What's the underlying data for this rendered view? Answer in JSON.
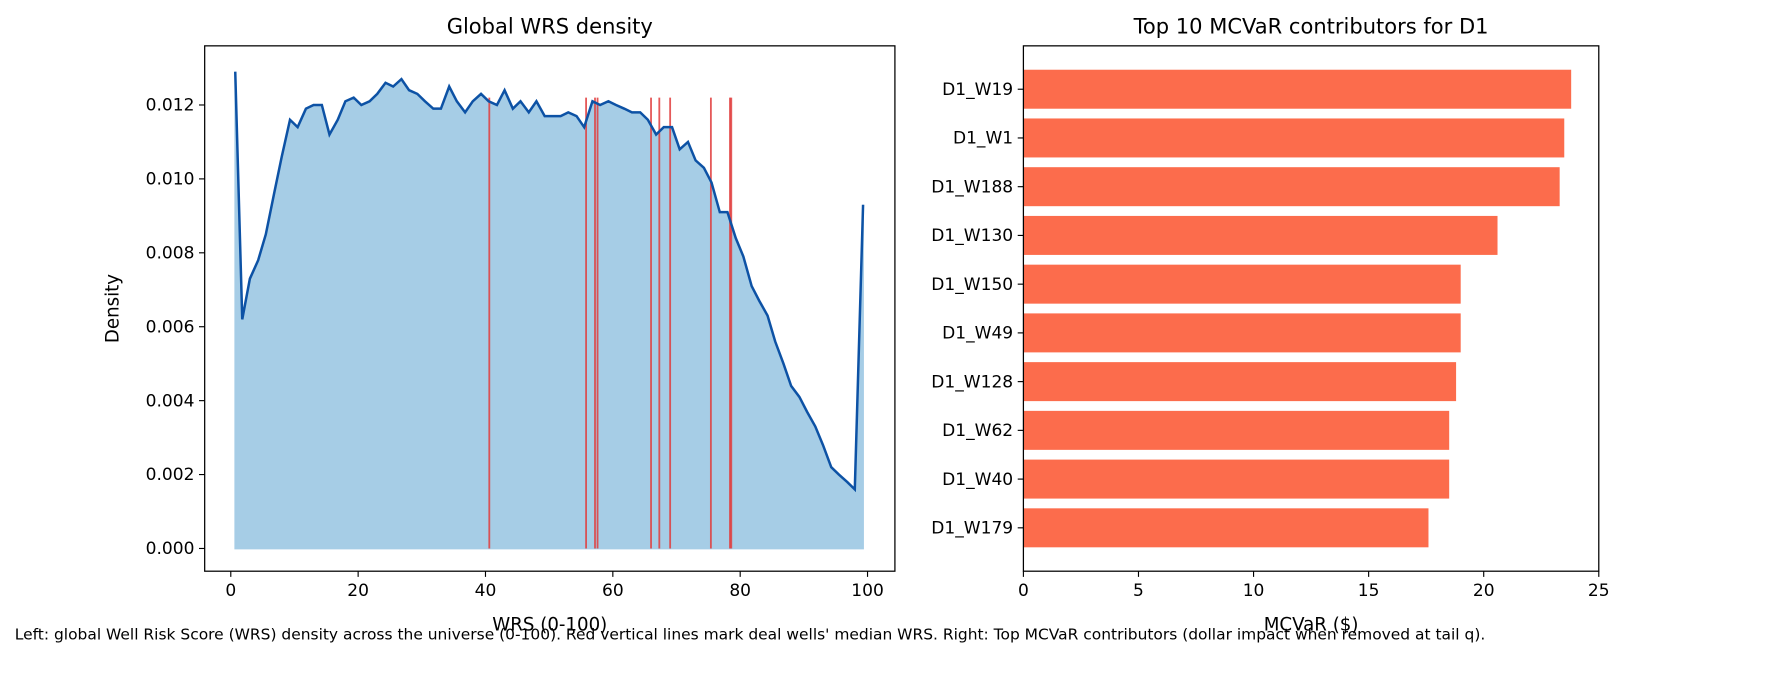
{
  "chart_data": [
    {
      "type": "area",
      "title": "Global WRS density",
      "x_label": "WRS (0-100)",
      "y_label": "Density",
      "xlim": [
        -4.1,
        104.3
      ],
      "ylim": [
        -0.000615,
        0.0136
      ],
      "xticks": [
        0,
        20,
        40,
        60,
        80,
        100
      ],
      "yticks": [
        {
          "value": 0,
          "label": "0.000"
        },
        {
          "value": 0.002,
          "label": "0.002"
        },
        {
          "value": 0.004,
          "label": "0.004"
        },
        {
          "value": 0.006,
          "label": "0.006"
        },
        {
          "value": 0.008,
          "label": "0.008"
        },
        {
          "value": 0.01,
          "label": "0.010"
        },
        {
          "value": 0.012,
          "label": "0.012"
        }
      ],
      "line_color": "#0d52a5",
      "fill_color": "#a6cde6",
      "x": [
        0.7,
        1.8,
        3.0,
        4.3,
        5.5,
        6.8,
        8.0,
        9.3,
        10.5,
        11.8,
        13.0,
        14.3,
        15.5,
        16.8,
        18.0,
        19.3,
        20.5,
        21.8,
        23.0,
        24.3,
        25.5,
        26.8,
        28.0,
        29.3,
        30.5,
        31.8,
        33.0,
        34.3,
        35.5,
        36.8,
        38.0,
        39.3,
        40.5,
        41.8,
        43.0,
        44.3,
        45.5,
        46.8,
        48.0,
        49.3,
        50.5,
        51.8,
        53.0,
        54.3,
        55.5,
        56.8,
        58.0,
        59.3,
        60.5,
        61.8,
        63.0,
        64.3,
        65.5,
        66.8,
        68.0,
        69.3,
        70.5,
        71.8,
        73.0,
        74.3,
        75.5,
        76.8,
        78.0,
        79.3,
        80.5,
        81.8,
        83.0,
        84.3,
        85.5,
        86.8,
        88.0,
        89.3,
        90.5,
        91.8,
        93.0,
        94.3,
        95.5,
        96.8,
        98.0,
        99.3
      ],
      "values": [
        0.0129,
        0.0062,
        0.0073,
        0.0078,
        0.0085,
        0.0096,
        0.0106,
        0.0116,
        0.0114,
        0.0119,
        0.012,
        0.012,
        0.0112,
        0.0116,
        0.0121,
        0.0122,
        0.012,
        0.0121,
        0.0123,
        0.0126,
        0.0125,
        0.0127,
        0.0124,
        0.0123,
        0.0121,
        0.0119,
        0.0119,
        0.0125,
        0.0121,
        0.0118,
        0.0121,
        0.0123,
        0.0121,
        0.012,
        0.0124,
        0.0119,
        0.0121,
        0.0118,
        0.0121,
        0.0117,
        0.0117,
        0.0117,
        0.0118,
        0.0117,
        0.0114,
        0.0121,
        0.012,
        0.0121,
        0.012,
        0.0119,
        0.0118,
        0.0118,
        0.0116,
        0.0112,
        0.0114,
        0.0114,
        0.0108,
        0.011,
        0.0105,
        0.0103,
        0.0099,
        0.0091,
        0.0091,
        0.0084,
        0.0079,
        0.0071,
        0.0067,
        0.0063,
        0.0056,
        0.005,
        0.0044,
        0.0041,
        0.0037,
        0.0033,
        0.0028,
        0.0022,
        0.002,
        0.0018,
        0.0016,
        0.0093
      ],
      "vlines": {
        "x": [
          40.6,
          55.8,
          57.2,
          57.6,
          66.0,
          67.3,
          69.0,
          75.4,
          78.4,
          78.6
        ],
        "ymin": 0,
        "ymax": 0.0122,
        "color": "#e03c3c"
      }
    },
    {
      "type": "barh",
      "title": "Top 10 MCVaR contributors for D1",
      "x_label": "MCVaR ($)",
      "xlim": [
        0,
        25
      ],
      "xticks": [
        0,
        5,
        10,
        15,
        20,
        25
      ],
      "color": "#fc6c4c",
      "categories": [
        "D1_W19",
        "D1_W1",
        "D1_W188",
        "D1_W130",
        "D1_W150",
        "D1_W49",
        "D1_W128",
        "D1_W62",
        "D1_W40",
        "D1_W179"
      ],
      "values": [
        23.8,
        23.5,
        23.3,
        20.6,
        19.0,
        19.0,
        18.8,
        18.5,
        18.5,
        17.6
      ]
    }
  ],
  "caption": "Left: global Well Risk Score (WRS) density across the universe (0-100). Red vertical lines mark deal wells' median WRS. Right: Top MCVaR contributors (dollar impact when removed at tail q)."
}
